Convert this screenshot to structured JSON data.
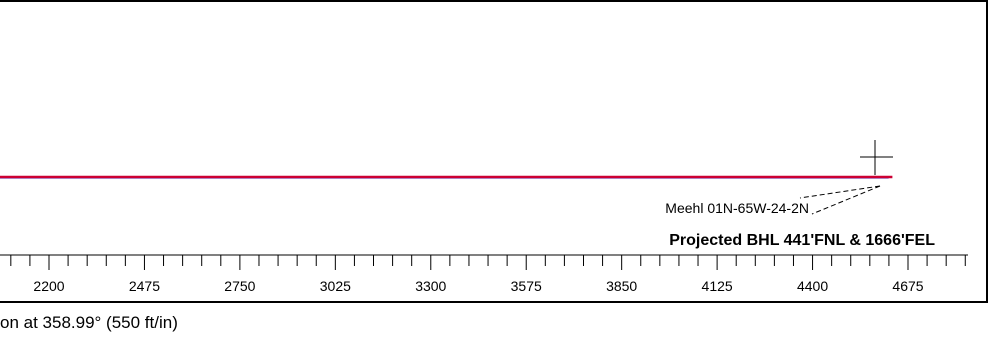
{
  "chart_data": {
    "type": "line",
    "title": "",
    "xlabel": "on at 358.99° (550 ft/in)",
    "ylabel": "",
    "x_ticks": [
      2200,
      2475,
      2750,
      3025,
      3300,
      3575,
      3850,
      4125,
      4400,
      4675
    ],
    "x_range": [
      1620,
      4940
    ],
    "grid": false,
    "series": [
      {
        "name": "",
        "color": "#0000cc",
        "x": [
          1625,
          4619
        ],
        "y": [
          0,
          0.0
        ]
      },
      {
        "name": "",
        "color": "#cc0033",
        "x": [
          1625,
          2050,
          2320,
          2550,
          2800,
          2950,
          3150,
          3400,
          3600,
          3850,
          4100,
          4300,
          4500,
          4630
        ],
        "y": [
          0,
          0.0,
          0.0,
          0.0,
          0.0,
          0.0,
          0.0,
          0.0,
          0.0,
          0.0,
          0.0,
          0.0,
          0.0,
          0.0
        ]
      }
    ],
    "annotations": {
      "well_name": "Meehl 01N-65W-24-2N",
      "bhl": "Projected BHL 441'FNL & 1666'FEL"
    }
  },
  "colors": {
    "plan_line": "#0000cc",
    "actual_line": "#cc0033",
    "frame": "#000000"
  }
}
